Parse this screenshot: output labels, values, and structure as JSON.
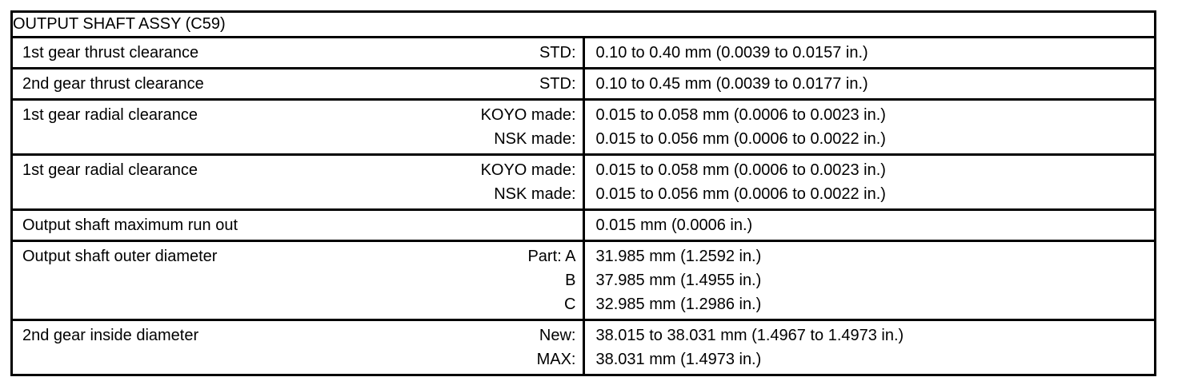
{
  "colors": {
    "background": "#ffffff",
    "border": "#000000",
    "text": "#000000"
  },
  "table": {
    "title": "OUTPUT SHAFT ASSY (C59)",
    "rows": [
      {
        "label": "1st gear thrust clearance",
        "entries": [
          {
            "qualifier": "STD:",
            "value": "0.10 to 0.40 mm (0.0039 to 0.0157 in.)"
          }
        ]
      },
      {
        "label": "2nd gear thrust clearance",
        "entries": [
          {
            "qualifier": "STD:",
            "value": "0.10 to 0.45 mm (0.0039 to 0.0177 in.)"
          }
        ]
      },
      {
        "label": "1st gear radial clearance",
        "entries": [
          {
            "qualifier": "KOYO made:",
            "value": "0.015 to 0.058 mm (0.0006 to 0.0023 in.)"
          },
          {
            "qualifier": "NSK made:",
            "value": "0.015 to 0.056 mm (0.0006 to 0.0022 in.)"
          }
        ]
      },
      {
        "label": "1st gear radial clearance",
        "entries": [
          {
            "qualifier": "KOYO made:",
            "value": "0.015 to 0.058 mm (0.0006 to 0.0023 in.)"
          },
          {
            "qualifier": "NSK made:",
            "value": "0.015 to 0.056 mm (0.0006 to 0.0022 in.)"
          }
        ]
      },
      {
        "label": "Output shaft maximum run out",
        "entries": [
          {
            "qualifier": "",
            "value": "0.015 mm (0.0006 in.)"
          }
        ]
      },
      {
        "label": "Output shaft outer diameter",
        "entries": [
          {
            "qualifier": "Part: A",
            "value": "31.985 mm (1.2592 in.)"
          },
          {
            "qualifier": "B",
            "value": "37.985 mm (1.4955 in.)"
          },
          {
            "qualifier": "C",
            "value": "32.985 mm (1.2986 in.)"
          }
        ]
      },
      {
        "label": "2nd gear inside diameter",
        "entries": [
          {
            "qualifier": "New:",
            "value": "38.015 to 38.031 mm (1.4967 to 1.4973 in.)"
          },
          {
            "qualifier": "MAX:",
            "value": "38.031 mm (1.4973 in.)"
          }
        ]
      }
    ]
  }
}
